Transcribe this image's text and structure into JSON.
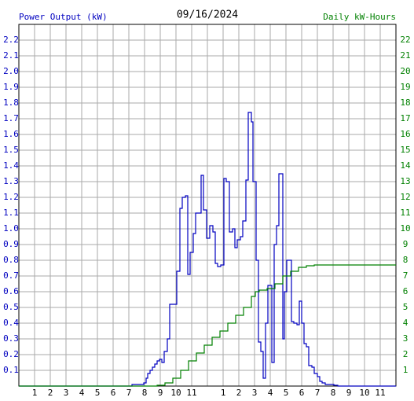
{
  "chart_data": {
    "type": "step",
    "title": "09/16/2024",
    "xlim": [
      0,
      24
    ],
    "xticks": [
      {
        "value": 1,
        "label": "1"
      },
      {
        "value": 2,
        "label": "2"
      },
      {
        "value": 3,
        "label": "3"
      },
      {
        "value": 4,
        "label": "4"
      },
      {
        "value": 5,
        "label": "5"
      },
      {
        "value": 6,
        "label": "6"
      },
      {
        "value": 7,
        "label": "7"
      },
      {
        "value": 8,
        "label": "8"
      },
      {
        "value": 9,
        "label": "9"
      },
      {
        "value": 10,
        "label": "10"
      },
      {
        "value": 11,
        "label": "11"
      },
      {
        "value": 12,
        "label": null
      },
      {
        "value": 13,
        "label": "1"
      },
      {
        "value": 14,
        "label": "2"
      },
      {
        "value": 15,
        "label": "3"
      },
      {
        "value": 16,
        "label": "4"
      },
      {
        "value": 17,
        "label": "5"
      },
      {
        "value": 18,
        "label": "6"
      },
      {
        "value": 19,
        "label": "7"
      },
      {
        "value": 20,
        "label": "8"
      },
      {
        "value": 21,
        "label": "9"
      },
      {
        "value": 22,
        "label": "10"
      },
      {
        "value": 23,
        "label": "11"
      }
    ],
    "ylim": [
      0,
      2.3
    ],
    "yticks": [
      0.1,
      0.2,
      0.3,
      0.4,
      0.5,
      0.6,
      0.7,
      0.8,
      0.9,
      {
        "value": 1.0,
        "label": "1.0"
      },
      1.1,
      1.2,
      1.3,
      1.4,
      1.5,
      1.6,
      1.7,
      1.8,
      1.9,
      {
        "value": 2.0,
        "label": "2.0"
      },
      2.1,
      2.2
    ],
    "y2lim": [
      0,
      23
    ],
    "y2ticks": [
      1,
      2,
      3,
      4,
      5,
      6,
      7,
      8,
      9,
      10,
      11,
      12,
      13,
      14,
      15,
      16,
      17,
      18,
      19,
      20,
      21,
      22
    ],
    "grid": true,
    "series": [
      {
        "name": "Power Output (kW)",
        "color": "#0000c0",
        "x": [
          0,
          7.2,
          7.95,
          8.1,
          8.2,
          8.35,
          8.5,
          8.65,
          8.8,
          8.95,
          9.1,
          9.25,
          9.45,
          9.6,
          9.9,
          10.05,
          10.25,
          10.4,
          10.6,
          10.75,
          10.9,
          11.1,
          11.25,
          11.6,
          11.75,
          11.95,
          12.15,
          12.35,
          12.5,
          12.65,
          12.85,
          13.05,
          13.2,
          13.4,
          13.6,
          13.75,
          13.9,
          14.1,
          14.25,
          14.45,
          14.6,
          14.8,
          14.9,
          15.1,
          15.25,
          15.4,
          15.55,
          15.7,
          15.85,
          15.95,
          16.1,
          16.25,
          16.4,
          16.55,
          16.7,
          16.8,
          16.9,
          17.05,
          17.2,
          17.35,
          17.5,
          17.7,
          17.85,
          18.0,
          18.15,
          18.3,
          18.45,
          18.65,
          18.8,
          19.0,
          19.15,
          19.3,
          19.5,
          20.05,
          20.3
        ],
        "values": [
          0,
          0.01,
          0.02,
          0.05,
          0.08,
          0.1,
          0.12,
          0.14,
          0.16,
          0.17,
          0.15,
          0.22,
          0.3,
          0.52,
          0.52,
          0.73,
          1.13,
          1.2,
          1.21,
          0.71,
          0.85,
          0.97,
          1.1,
          1.34,
          1.12,
          0.94,
          1.02,
          0.98,
          0.78,
          0.76,
          0.77,
          1.32,
          1.3,
          0.98,
          1.0,
          0.88,
          0.93,
          0.95,
          1.05,
          1.31,
          1.74,
          1.68,
          1.3,
          0.8,
          0.28,
          0.22,
          0.05,
          0.4,
          0.64,
          0.64,
          0.15,
          0.9,
          1.02,
          1.35,
          1.35,
          0.3,
          0.6,
          0.8,
          0.8,
          0.41,
          0.4,
          0.39,
          0.54,
          0.4,
          0.27,
          0.25,
          0.13,
          0.12,
          0.08,
          0.06,
          0.03,
          0.02,
          0.01,
          0.005,
          0
        ]
      },
      {
        "name": "Daily kW-Hours",
        "color": "#008000",
        "axis": "y2",
        "x": [
          0,
          7.8,
          8.8,
          9.3,
          9.8,
          10.3,
          10.8,
          11.3,
          11.8,
          12.3,
          12.8,
          13.3,
          13.8,
          14.3,
          14.8,
          15.05,
          15.3,
          15.8,
          16.3,
          16.8,
          17.3,
          17.8,
          18.3,
          18.8
        ],
        "values": [
          0,
          0,
          0.05,
          0.2,
          0.5,
          1.0,
          1.6,
          2.1,
          2.6,
          3.1,
          3.5,
          4.0,
          4.5,
          5.0,
          5.7,
          6.0,
          6.1,
          6.2,
          6.5,
          7.0,
          7.3,
          7.55,
          7.65,
          7.7
        ]
      }
    ]
  }
}
